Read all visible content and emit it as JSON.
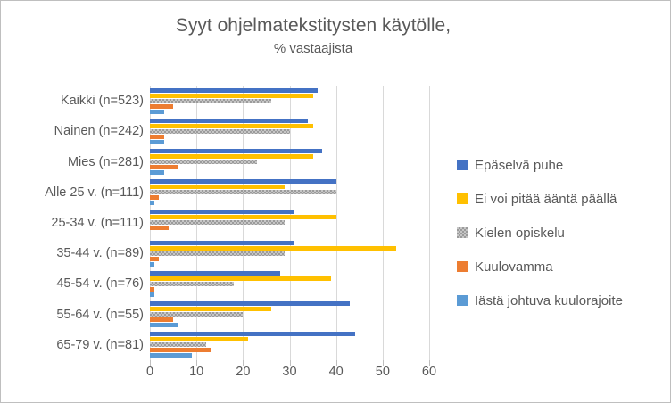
{
  "chart_data": {
    "type": "bar",
    "orientation": "horizontal",
    "title": "Syyt ohjelmatekstitysten käytölle,",
    "subtitle": "% vastaajista",
    "xlim": [
      0,
      60
    ],
    "x_ticks": [
      0,
      10,
      20,
      30,
      40,
      50,
      60
    ],
    "grid": true,
    "legend_position": "right",
    "categories": [
      "Kaikki (n=523)",
      "Nainen (n=242)",
      "Mies (n=281)",
      "Alle 25 v. (n=111)",
      "25-34 v. (n=111)",
      "35-44 v. (n=89)",
      "45-54 v. (n=76)",
      "55-64 v. (n=55)",
      "65-79 v. (n=81)"
    ],
    "series": [
      {
        "name": "Epäselvä puhe",
        "color": "#4472c4",
        "pattern": false,
        "values": [
          36,
          34,
          37,
          40,
          31,
          31,
          28,
          43,
          44
        ]
      },
      {
        "name": "Ei voi pitää ääntä päällä",
        "color": "#ffc000",
        "pattern": false,
        "values": [
          35,
          35,
          35,
          29,
          40,
          53,
          39,
          26,
          21
        ]
      },
      {
        "name": "Kielen opiskelu",
        "color": "#a5a5a5",
        "pattern": true,
        "values": [
          26,
          30,
          23,
          40,
          29,
          29,
          18,
          20,
          12
        ]
      },
      {
        "name": "Kuulovamma",
        "color": "#ed7d31",
        "pattern": false,
        "values": [
          5,
          3,
          6,
          2,
          4,
          2,
          1,
          5,
          13
        ]
      },
      {
        "name": "Iästä johtuva kuulorajoite",
        "color": "#5b9bd5",
        "pattern": false,
        "values": [
          3,
          3,
          3,
          1,
          0,
          1,
          1,
          6,
          9
        ]
      }
    ],
    "colors": {
      "gridline": "#d9d9d9",
      "tick": "#bfbfbf",
      "text": "#595959",
      "frame_border": "#bfbfbf",
      "background": "#ffffff"
    }
  }
}
